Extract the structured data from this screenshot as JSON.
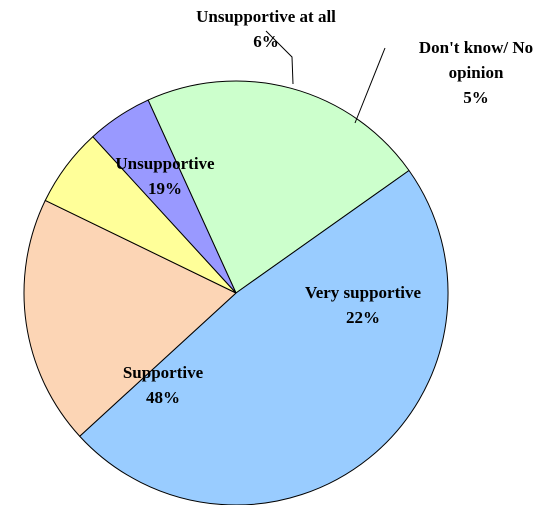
{
  "chart_data": {
    "type": "pie",
    "title": "",
    "slices": [
      {
        "label": "Very supportive",
        "label_lines": [
          "Very supportive"
        ],
        "value": 22,
        "value_label": "22%",
        "color": "#ccffcc"
      },
      {
        "label": "Supportive",
        "label_lines": [
          "Supportive"
        ],
        "value": 48,
        "value_label": "48%",
        "color": "#99ccff"
      },
      {
        "label": "Unsupportive",
        "label_lines": [
          "Unsupportive"
        ],
        "value": 19,
        "value_label": "19%",
        "color": "#fcd5b5"
      },
      {
        "label": "Unsupportive at all",
        "label_lines": [
          "Unsupportive at all"
        ],
        "value": 6,
        "value_label": "6%",
        "color": "#ffff99"
      },
      {
        "label": "Don't know/ No opinion",
        "label_lines": [
          "Don't know/ No",
          "opinion"
        ],
        "value": 5,
        "value_label": "5%",
        "color": "#9999ff"
      }
    ],
    "legend": "none"
  }
}
